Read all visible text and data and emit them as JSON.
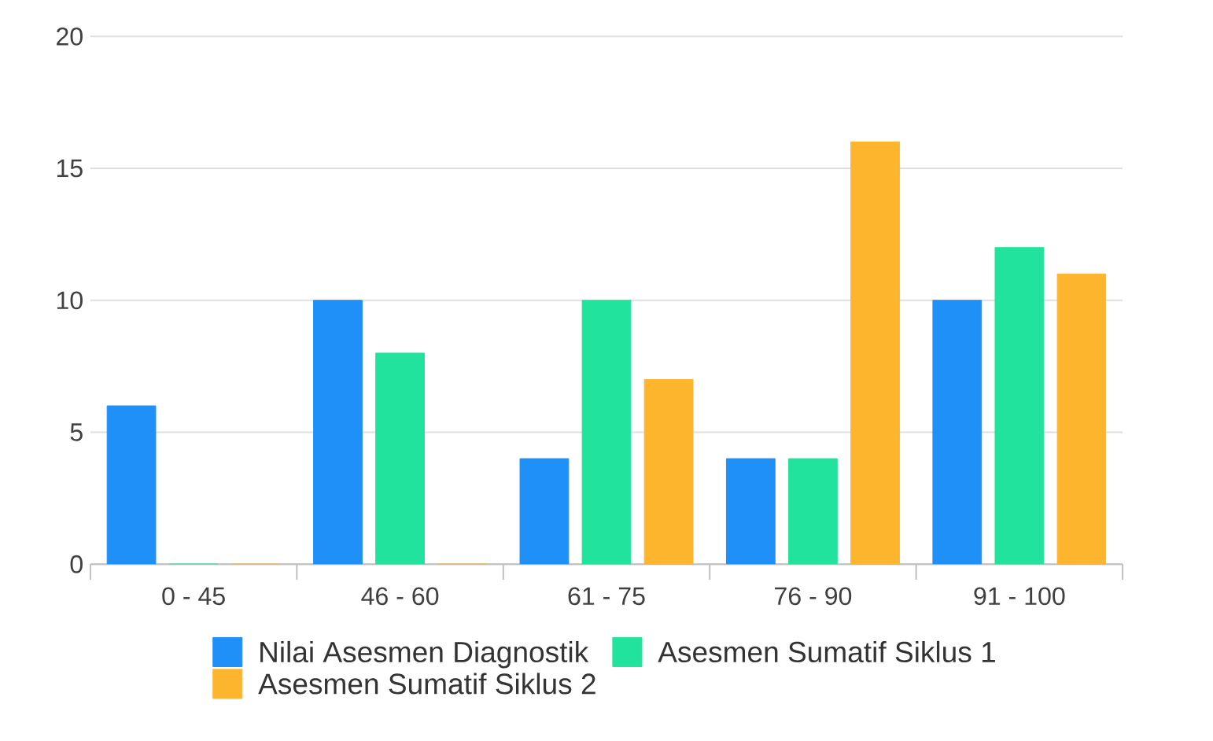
{
  "chart_data": {
    "type": "bar",
    "categories": [
      "0 - 45",
      "46 - 60",
      "61 - 75",
      "76 - 90",
      "91 - 100"
    ],
    "series": [
      {
        "name": "Nilai Asesmen Diagnostik",
        "color": "#1e90f8",
        "values": [
          6,
          10,
          4,
          4,
          10
        ]
      },
      {
        "name": "Asesmen Sumatif Siklus 1",
        "color": "#22e39d",
        "values": [
          0,
          8,
          10,
          4,
          12
        ]
      },
      {
        "name": "Asesmen Sumatif Siklus 2",
        "color": "#fdb52e",
        "values": [
          0,
          0,
          7,
          16,
          11
        ]
      }
    ],
    "ylim": [
      0,
      20
    ],
    "yticks": [
      0,
      5,
      10,
      15,
      20
    ],
    "grid": "y",
    "legend": "bottom"
  }
}
